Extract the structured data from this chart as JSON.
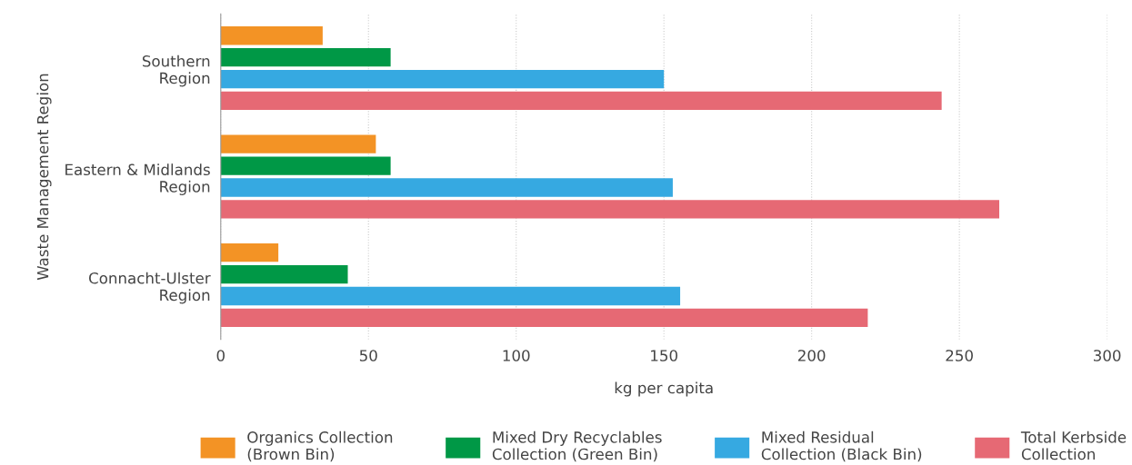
{
  "chart_data": {
    "type": "bar",
    "orientation": "horizontal",
    "xlabel": "kg per capita",
    "ylabel": "Waste Management Region",
    "categories": [
      "Southern\nRegion",
      "Eastern & Midlands\nRegion",
      "Connacht-Ulster\nRegion"
    ],
    "series": [
      {
        "name": "Organics Collection\n(Brown Bin)",
        "color": "#f39325",
        "values": [
          34.5,
          52.5,
          19.5
        ]
      },
      {
        "name": "Mixed Dry Recyclables\nCollection (Green Bin)",
        "color": "#009846",
        "values": [
          57.5,
          57.5,
          43
        ]
      },
      {
        "name": "Mixed Residual\nCollection (Black Bin)",
        "color": "#36a9e1",
        "values": [
          150,
          153,
          155.5
        ]
      },
      {
        "name": "Total Kerbside\nCollection",
        "color": "#e66974",
        "values": [
          244,
          263.5,
          219
        ]
      }
    ],
    "xlim": [
      0,
      300
    ],
    "xticks": [
      0,
      50,
      100,
      150,
      200,
      250,
      300
    ],
    "grid": "x",
    "legend": "bottom"
  }
}
